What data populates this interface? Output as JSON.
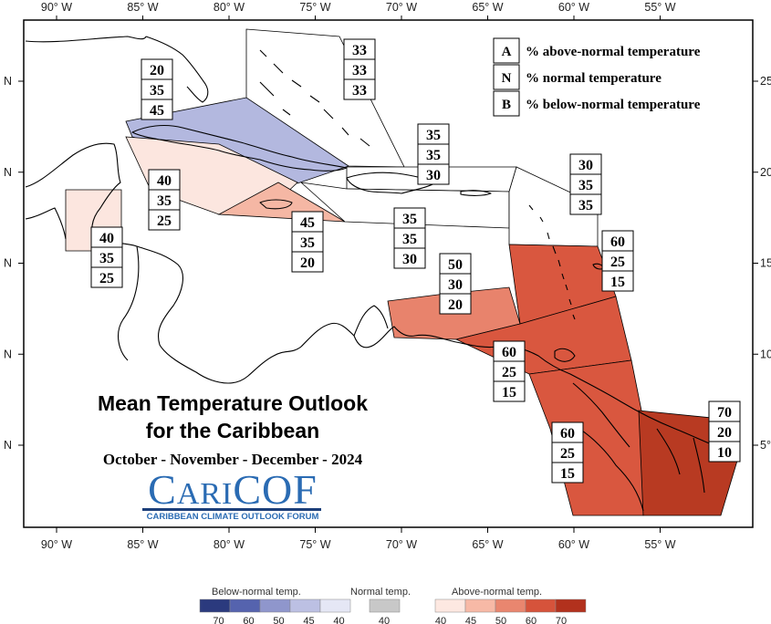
{
  "title": {
    "line1": "Mean Temperature Outlook",
    "line2": "for the Caribbean",
    "period": "October - November - December - 2024"
  },
  "logo": {
    "name_parts": [
      "C",
      "ARI",
      "COF"
    ],
    "tagline": "CARIBBEAN CLIMATE OUTLOOK FORUM"
  },
  "axes": {
    "longitude_labels": [
      "90° W",
      "85° W",
      "80° W",
      "75° W",
      "70° W",
      "65° W",
      "60° W",
      "55° W"
    ],
    "longitudes": [
      -90,
      -85,
      -80,
      -75,
      -70,
      -65,
      -60,
      -55
    ],
    "left_latitude_labels": [
      "N",
      "N",
      "N",
      "N",
      "N"
    ],
    "right_latitude_labels": [
      "25°",
      "20°",
      "15°",
      "10°",
      "5°"
    ],
    "latitudes": [
      25,
      20,
      15,
      10,
      5
    ]
  },
  "key": [
    {
      "letter": "A",
      "text": "% above-normal temperature"
    },
    {
      "letter": "N",
      "text": "% normal temperature"
    },
    {
      "letter": "B",
      "text": "% below-normal temperature"
    }
  ],
  "regions": [
    {
      "id": "bahamas",
      "A": 33,
      "N": 33,
      "B": 33,
      "color": "#ffffff"
    },
    {
      "id": "cuba",
      "A": 20,
      "N": 35,
      "B": 45,
      "color": "#b3b8df"
    },
    {
      "id": "cayman-jamaica-channel",
      "A": 40,
      "N": 35,
      "B": 25,
      "color": "#fce6df"
    },
    {
      "id": "jamaica",
      "A": 45,
      "N": 35,
      "B": 20,
      "color": "#f5b7a4"
    },
    {
      "id": "turks-caicos",
      "A": 35,
      "N": 35,
      "B": 30,
      "color": "#ffffff"
    },
    {
      "id": "hispaniola",
      "A": 35,
      "N": 35,
      "B": 30,
      "color": "#ffffff"
    },
    {
      "id": "puerto-rico-leewards",
      "A": 30,
      "N": 35,
      "B": 35,
      "color": "#ffffff"
    },
    {
      "id": "belize",
      "A": 40,
      "N": 35,
      "B": 25,
      "color": "#fce6df"
    },
    {
      "id": "windwards-barbados",
      "A": 60,
      "N": 25,
      "B": 15,
      "color": "#d9573f"
    },
    {
      "id": "abc-islands",
      "A": 50,
      "N": 30,
      "B": 20,
      "color": "#e8836c"
    },
    {
      "id": "trinidad-tobago",
      "A": 60,
      "N": 25,
      "B": 15,
      "color": "#d9573f"
    },
    {
      "id": "guyana",
      "A": 60,
      "N": 25,
      "B": 15,
      "color": "#d9573f"
    },
    {
      "id": "suriname-french-guiana",
      "A": 70,
      "N": 20,
      "B": 10,
      "color": "#b83a22"
    }
  ],
  "colorbar": {
    "below_label": "Below-normal temp.",
    "below_values": [
      "70",
      "60",
      "50",
      "45",
      "40"
    ],
    "below_colors": [
      "#2b3a7e",
      "#5563ae",
      "#8f96cc",
      "#bcc0e3",
      "#e5e7f5"
    ],
    "normal_label": "Normal temp.",
    "normal_value": "40",
    "normal_color": "#c8c8c8",
    "above_label": "Above-normal temp.",
    "above_values": [
      "40",
      "45",
      "50",
      "60",
      "70"
    ],
    "above_colors": [
      "#fde8e1",
      "#f7b9a6",
      "#e9866f",
      "#d6533b",
      "#b2311d"
    ]
  },
  "colors": {
    "frame": "#000000",
    "coast": "#000000",
    "ocean": "#ffffff"
  }
}
